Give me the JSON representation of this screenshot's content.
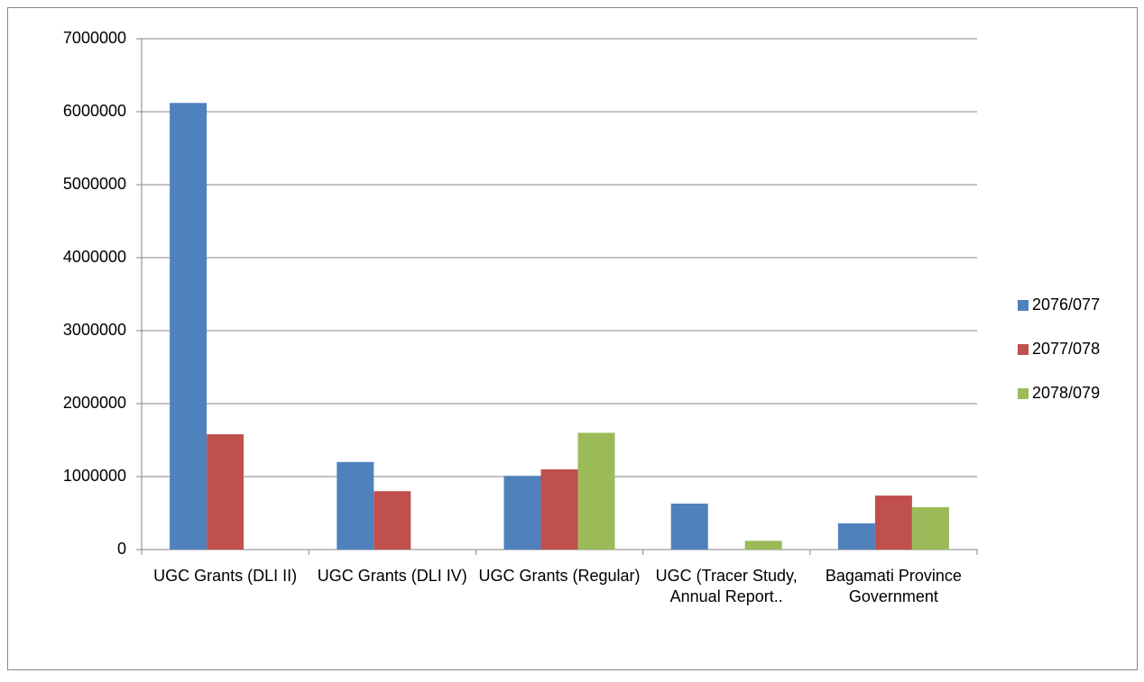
{
  "chart_data": {
    "type": "bar",
    "categories": [
      "UGC Grants (DLI II)",
      "UGC Grants (DLI IV)",
      "UGC Grants (Regular)",
      "UGC (Tracer Study, Annual Report..",
      "Bagamati Province Government"
    ],
    "series": [
      {
        "name": "2076/077",
        "color": "#4f81bd",
        "values": [
          6120000,
          1200000,
          1010000,
          630000,
          360000
        ]
      },
      {
        "name": "2077/078",
        "color": "#c0504d",
        "values": [
          1580000,
          800000,
          1100000,
          0,
          740000
        ]
      },
      {
        "name": "2078/079",
        "color": "#9bbb59",
        "values": [
          0,
          0,
          1600000,
          120000,
          580000
        ]
      }
    ],
    "ylim": [
      0,
      7000000
    ],
    "yticks": [
      0,
      1000000,
      2000000,
      3000000,
      4000000,
      5000000,
      6000000,
      7000000
    ],
    "grid": true,
    "legend": "right"
  }
}
